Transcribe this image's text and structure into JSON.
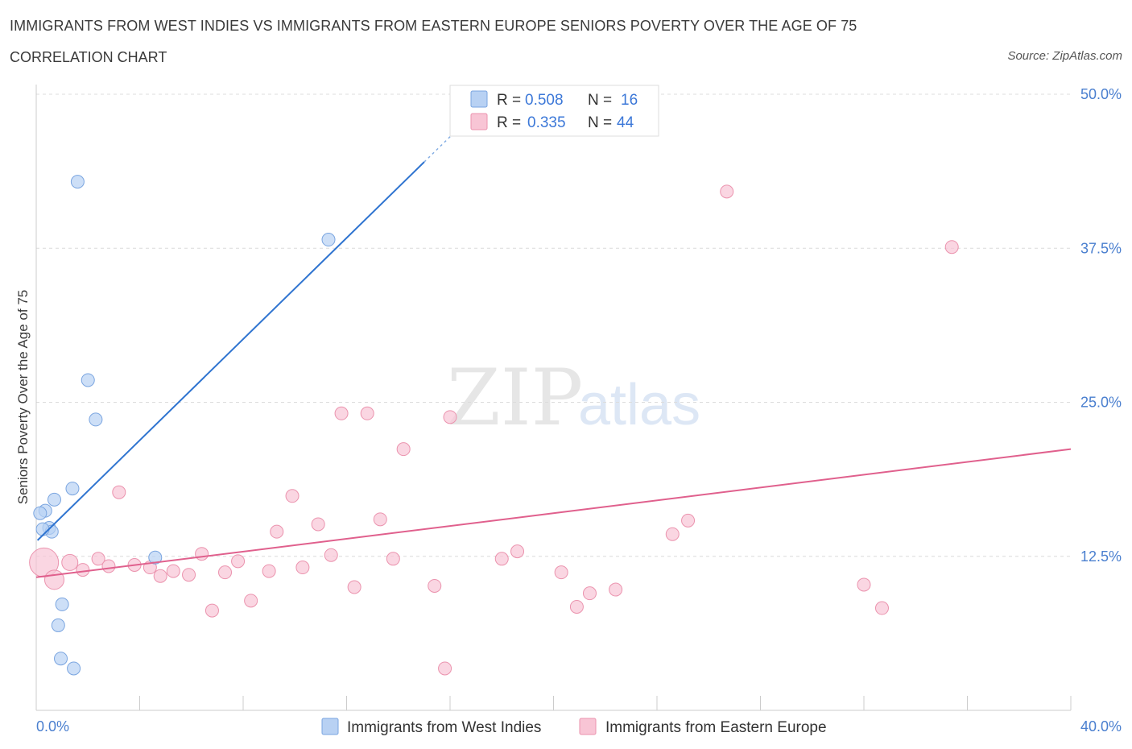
{
  "title": "IMMIGRANTS FROM WEST INDIES VS IMMIGRANTS FROM EASTERN EUROPE SENIORS POVERTY OVER THE AGE OF 75",
  "subtitle": "CORRELATION CHART",
  "source": "Source: ZipAtlas.com",
  "watermark": {
    "zip": "ZIP",
    "atlas": "atlas"
  },
  "legend": {
    "r_label": "R =",
    "n_label": "N =",
    "entries": [
      {
        "r": "0.508",
        "n": "16",
        "color": "#b8d1f3",
        "stroke": "#7aa5e0"
      },
      {
        "r": "0.335",
        "n": "44",
        "color": "#f8c5d5",
        "stroke": "#eb93ae"
      }
    ]
  },
  "chart_data": {
    "type": "scatter",
    "xlabel": "",
    "ylabel": "Seniors Poverty Over the Age of 75",
    "xlim": [
      0,
      40
    ],
    "ylim": [
      0,
      50
    ],
    "x_tick_labels": [
      "0.0%",
      "40.0%"
    ],
    "y_ticks": [
      12.5,
      25.0,
      37.5,
      50.0
    ],
    "y_tick_labels": [
      "12.5%",
      "25.0%",
      "37.5%",
      "50.0%"
    ],
    "grid": true,
    "series": [
      {
        "name": "Immigrants from West Indies",
        "color": "#b8d1f3",
        "stroke": "#7aa5e0",
        "line_color": "#2f74d0",
        "trend": {
          "x0": 0.05,
          "y0": 13.8,
          "x1": 15.0,
          "y1": 44.5,
          "dash_to_x": 17.0,
          "dash_to_y": 48.6
        },
        "points": [
          {
            "x": 1.6,
            "y": 42.9
          },
          {
            "x": 11.3,
            "y": 38.2
          },
          {
            "x": 2.0,
            "y": 26.8
          },
          {
            "x": 2.3,
            "y": 23.6
          },
          {
            "x": 1.4,
            "y": 18.0
          },
          {
            "x": 0.7,
            "y": 17.1
          },
          {
            "x": 0.35,
            "y": 16.2
          },
          {
            "x": 0.15,
            "y": 16.0
          },
          {
            "x": 0.5,
            "y": 14.8
          },
          {
            "x": 0.6,
            "y": 14.5
          },
          {
            "x": 0.25,
            "y": 14.7
          },
          {
            "x": 4.6,
            "y": 12.4
          },
          {
            "x": 1.0,
            "y": 8.6
          },
          {
            "x": 0.85,
            "y": 6.9
          },
          {
            "x": 0.95,
            "y": 4.2
          },
          {
            "x": 1.45,
            "y": 3.4
          }
        ]
      },
      {
        "name": "Immigrants from Eastern Europe",
        "color": "#f8c5d5",
        "stroke": "#eb93ae",
        "line_color": "#e0608d",
        "trend": {
          "x0": 0.0,
          "y0": 10.8,
          "x1": 40.0,
          "y1": 21.2
        },
        "points": [
          {
            "x": 0.3,
            "y": 12.0,
            "r": 18
          },
          {
            "x": 0.7,
            "y": 10.6,
            "r": 12
          },
          {
            "x": 1.3,
            "y": 12.0,
            "r": 10
          },
          {
            "x": 1.8,
            "y": 11.4
          },
          {
            "x": 2.4,
            "y": 12.3
          },
          {
            "x": 2.8,
            "y": 11.7
          },
          {
            "x": 3.2,
            "y": 17.7
          },
          {
            "x": 3.8,
            "y": 11.8
          },
          {
            "x": 4.4,
            "y": 11.6
          },
          {
            "x": 4.8,
            "y": 10.9
          },
          {
            "x": 5.3,
            "y": 11.3
          },
          {
            "x": 5.9,
            "y": 11.0
          },
          {
            "x": 6.4,
            "y": 12.7
          },
          {
            "x": 6.8,
            "y": 8.1
          },
          {
            "x": 7.3,
            "y": 11.2
          },
          {
            "x": 7.8,
            "y": 12.1
          },
          {
            "x": 8.3,
            "y": 8.9
          },
          {
            "x": 9.0,
            "y": 11.3
          },
          {
            "x": 9.3,
            "y": 14.5
          },
          {
            "x": 9.9,
            "y": 17.4
          },
          {
            "x": 10.3,
            "y": 11.6
          },
          {
            "x": 10.9,
            "y": 15.1
          },
          {
            "x": 11.4,
            "y": 12.6
          },
          {
            "x": 11.8,
            "y": 24.1
          },
          {
            "x": 12.3,
            "y": 10.0
          },
          {
            "x": 12.8,
            "y": 24.1
          },
          {
            "x": 13.3,
            "y": 15.5
          },
          {
            "x": 13.8,
            "y": 12.3
          },
          {
            "x": 14.2,
            "y": 21.2
          },
          {
            "x": 15.4,
            "y": 10.1
          },
          {
            "x": 15.8,
            "y": 3.4
          },
          {
            "x": 16.0,
            "y": 23.8
          },
          {
            "x": 18.0,
            "y": 12.3
          },
          {
            "x": 18.6,
            "y": 12.9
          },
          {
            "x": 20.3,
            "y": 11.2
          },
          {
            "x": 20.9,
            "y": 8.4
          },
          {
            "x": 21.4,
            "y": 9.5
          },
          {
            "x": 22.4,
            "y": 9.8
          },
          {
            "x": 24.6,
            "y": 14.3
          },
          {
            "x": 25.2,
            "y": 15.4
          },
          {
            "x": 26.7,
            "y": 42.1
          },
          {
            "x": 32.0,
            "y": 10.2
          },
          {
            "x": 32.7,
            "y": 8.3
          },
          {
            "x": 35.4,
            "y": 37.6
          }
        ]
      }
    ]
  }
}
